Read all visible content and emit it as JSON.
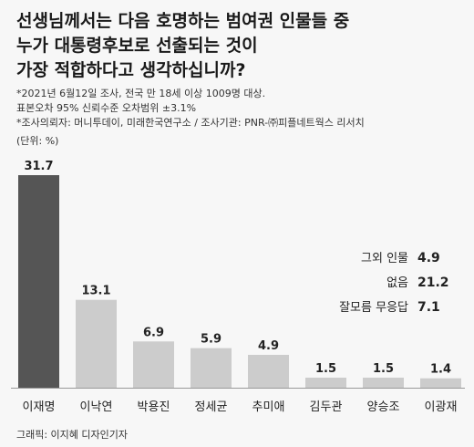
{
  "title_lines": [
    "선생님께서는 다음 호명하는 범여권 인물들 중",
    "누가 대통령후보로 선출되는 것이",
    "가장 적합하다고 생각하십니까?"
  ],
  "notes": [
    "*2021년 6월12일 조사, 전국 만 18세 이상 1009명 대상.",
    "표본오차 95% 신뢰수준 오차범위 ±3.1%",
    "*조사의뢰자: 머니투데이, 미래한국연구소 / 조사기관: PNR-㈜피플네트웍스 리서치"
  ],
  "unit": "(단위: %)",
  "credit": "그래픽: 이지혜 디자인기자",
  "colors": {
    "highlight": "#555555",
    "normal": "#cccccc",
    "axis": "#999999"
  },
  "others": [
    {
      "label": "그외 인물",
      "value": "4.9"
    },
    {
      "label": "없음",
      "value": "21.2"
    },
    {
      "label": "잘모름 무응답",
      "value": "7.1"
    }
  ],
  "chart_data": {
    "type": "bar",
    "categories": [
      "이재명",
      "이낙연",
      "박용진",
      "정세균",
      "추미애",
      "김두관",
      "양승조",
      "이광재"
    ],
    "values": [
      31.7,
      13.1,
      6.9,
      5.9,
      4.9,
      1.5,
      1.5,
      1.4
    ],
    "highlight_index": 0,
    "ylim": [
      0,
      31.7
    ]
  }
}
